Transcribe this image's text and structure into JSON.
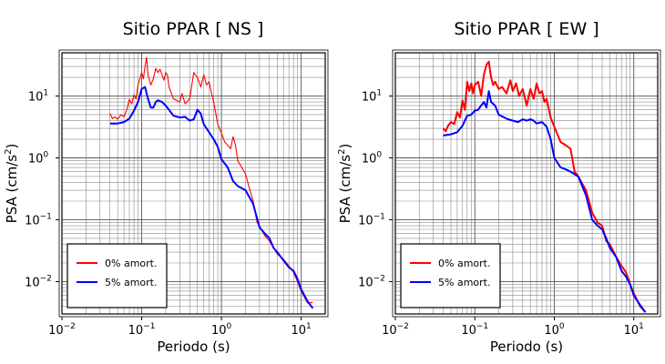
{
  "chart_data": [
    {
      "type": "line",
      "title": "Sitio PPAR [ NS ]",
      "xlabel": "Periodo (s)",
      "ylabel": "PSA (cm/s²)",
      "x_scale": "log",
      "y_scale": "log",
      "xlim": [
        0.01,
        20
      ],
      "ylim": [
        0.003,
        50
      ],
      "grid": true,
      "legend_position": "bottom-left",
      "x_ticks": [
        {
          "value": 0.01,
          "base": "10",
          "exp": "−2"
        },
        {
          "value": 0.1,
          "base": "10",
          "exp": "−1"
        },
        {
          "value": 1,
          "base": "10",
          "exp": "0"
        },
        {
          "value": 10,
          "base": "10",
          "exp": "1"
        }
      ],
      "y_ticks": [
        {
          "value": 0.01,
          "base": "10",
          "exp": "−2"
        },
        {
          "value": 0.1,
          "base": "10",
          "exp": "−1"
        },
        {
          "value": 1,
          "base": "10",
          "exp": "0"
        },
        {
          "value": 10,
          "base": "10",
          "exp": "1"
        }
      ],
      "series": [
        {
          "name": "0% amort.",
          "color": "#ff0000",
          "x": [
            0.04,
            0.043,
            0.046,
            0.05,
            0.055,
            0.06,
            0.065,
            0.07,
            0.075,
            0.08,
            0.085,
            0.09,
            0.1,
            0.105,
            0.11,
            0.115,
            0.12,
            0.13,
            0.14,
            0.15,
            0.16,
            0.17,
            0.19,
            0.2,
            0.21,
            0.22,
            0.25,
            0.3,
            0.32,
            0.35,
            0.4,
            0.45,
            0.5,
            0.55,
            0.6,
            0.65,
            0.7,
            0.75,
            0.8,
            0.9,
            1.0,
            1.1,
            1.2,
            1.3,
            1.4,
            1.5,
            1.6,
            1.8,
            2.0,
            2.2,
            2.5,
            2.8,
            3.0,
            3.5,
            4.0,
            4.5,
            5.0,
            6.0,
            7.0,
            8.0,
            9.0,
            10.0,
            12.0,
            14.0
          ],
          "y": [
            5.2,
            4.3,
            4.6,
            4.2,
            5.0,
            4.6,
            6.0,
            8.8,
            7.5,
            10.5,
            9.0,
            15.0,
            24.0,
            19.0,
            30.0,
            42.0,
            22.0,
            15.0,
            19.0,
            28.0,
            24.0,
            27.0,
            18.0,
            24.0,
            22.0,
            14.0,
            9.0,
            8.0,
            11.0,
            7.5,
            9.0,
            24.0,
            20.0,
            14.0,
            22.0,
            15.0,
            17.0,
            11.0,
            8.0,
            3.5,
            2.5,
            1.8,
            1.6,
            1.4,
            2.2,
            1.6,
            0.9,
            0.7,
            0.55,
            0.35,
            0.2,
            0.09,
            0.08,
            0.055,
            0.045,
            0.035,
            0.028,
            0.023,
            0.018,
            0.014,
            0.01,
            0.007,
            0.0045,
            0.0046
          ]
        },
        {
          "name": "5% amort.",
          "color": "#0000ff",
          "x": [
            0.04,
            0.05,
            0.06,
            0.07,
            0.08,
            0.09,
            0.1,
            0.11,
            0.12,
            0.13,
            0.14,
            0.15,
            0.16,
            0.18,
            0.2,
            0.22,
            0.25,
            0.3,
            0.35,
            0.4,
            0.45,
            0.5,
            0.55,
            0.6,
            0.7,
            0.8,
            0.9,
            1.0,
            1.2,
            1.4,
            1.6,
            2.0,
            2.5,
            3.0,
            3.5,
            4.0,
            4.5,
            5.0,
            6.0,
            7.0,
            8.0,
            9.0,
            10.0,
            12.0,
            14.0
          ],
          "y": [
            3.6,
            3.6,
            3.8,
            4.3,
            5.8,
            8.0,
            13.0,
            14.0,
            9.0,
            6.5,
            6.5,
            8.0,
            8.5,
            8.0,
            7.0,
            6.0,
            4.8,
            4.5,
            4.6,
            4.0,
            4.2,
            6.0,
            5.2,
            3.5,
            2.6,
            2.0,
            1.5,
            0.95,
            0.7,
            0.42,
            0.35,
            0.3,
            0.18,
            0.075,
            0.06,
            0.05,
            0.035,
            0.03,
            0.022,
            0.017,
            0.015,
            0.011,
            0.0075,
            0.0048,
            0.0037
          ]
        }
      ]
    },
    {
      "type": "line",
      "title": "Sitio PPAR [ EW ]",
      "xlabel": "Periodo (s)",
      "ylabel": "PSA (cm/s²)",
      "x_scale": "log",
      "y_scale": "log",
      "xlim": [
        0.01,
        20
      ],
      "ylim": [
        0.003,
        50
      ],
      "grid": true,
      "legend_position": "bottom-left",
      "x_ticks": [
        {
          "value": 0.01,
          "base": "10",
          "exp": "−2"
        },
        {
          "value": 0.1,
          "base": "10",
          "exp": "−1"
        },
        {
          "value": 1,
          "base": "10",
          "exp": "0"
        },
        {
          "value": 10,
          "base": "10",
          "exp": "1"
        }
      ],
      "y_ticks": [
        {
          "value": 0.01,
          "base": "10",
          "exp": "−2"
        },
        {
          "value": 0.1,
          "base": "10",
          "exp": "−1"
        },
        {
          "value": 1,
          "base": "10",
          "exp": "0"
        },
        {
          "value": 10,
          "base": "10",
          "exp": "1"
        }
      ],
      "series": [
        {
          "name": "0% amort.",
          "color": "#ff0000",
          "x": [
            0.04,
            0.043,
            0.046,
            0.05,
            0.055,
            0.06,
            0.065,
            0.07,
            0.075,
            0.08,
            0.085,
            0.09,
            0.095,
            0.1,
            0.11,
            0.12,
            0.13,
            0.14,
            0.15,
            0.16,
            0.17,
            0.18,
            0.2,
            0.22,
            0.25,
            0.28,
            0.3,
            0.33,
            0.36,
            0.4,
            0.45,
            0.5,
            0.55,
            0.6,
            0.65,
            0.7,
            0.75,
            0.8,
            0.9,
            1.0,
            1.2,
            1.4,
            1.6,
            1.8,
            2.0,
            2.5,
            3.0,
            3.5,
            4.0,
            4.5,
            5.0,
            6.0,
            7.0,
            8.0,
            9.0,
            10.0,
            12.0,
            14.0
          ],
          "y": [
            3.0,
            2.7,
            3.3,
            3.8,
            3.5,
            5.5,
            4.5,
            8.5,
            6.0,
            17.0,
            12.0,
            16.0,
            11.0,
            15.0,
            17.0,
            10.0,
            22.0,
            32.0,
            36.0,
            20.0,
            15.0,
            17.0,
            13.0,
            14.0,
            11.0,
            18.0,
            12.0,
            16.0,
            10.0,
            13.0,
            7.0,
            13.0,
            9.0,
            16.0,
            11.0,
            12.0,
            8.0,
            9.0,
            4.5,
            3.2,
            1.8,
            1.6,
            1.4,
            0.6,
            0.5,
            0.3,
            0.13,
            0.09,
            0.08,
            0.045,
            0.04,
            0.025,
            0.018,
            0.014,
            0.009,
            0.0065,
            0.004,
            0.0032
          ]
        },
        {
          "name": "5% amort.",
          "color": "#0000ff",
          "x": [
            0.04,
            0.05,
            0.06,
            0.07,
            0.08,
            0.09,
            0.1,
            0.11,
            0.12,
            0.13,
            0.14,
            0.15,
            0.16,
            0.18,
            0.2,
            0.25,
            0.3,
            0.35,
            0.4,
            0.45,
            0.5,
            0.55,
            0.6,
            0.7,
            0.8,
            0.9,
            1.0,
            1.2,
            1.4,
            1.6,
            2.0,
            2.5,
            3.0,
            3.5,
            4.0,
            4.5,
            5.0,
            6.0,
            7.0,
            8.0,
            9.0,
            10.0,
            12.0,
            14.0
          ],
          "y": [
            2.3,
            2.4,
            2.6,
            3.3,
            4.8,
            5.0,
            5.8,
            6.0,
            7.0,
            8.0,
            6.5,
            12.0,
            8.0,
            7.0,
            5.0,
            4.3,
            4.0,
            3.8,
            4.2,
            4.0,
            4.2,
            4.0,
            3.6,
            3.8,
            3.2,
            2.0,
            1.0,
            0.7,
            0.65,
            0.6,
            0.5,
            0.25,
            0.1,
            0.08,
            0.07,
            0.05,
            0.035,
            0.025,
            0.015,
            0.012,
            0.009,
            0.006,
            0.0042,
            0.0032
          ]
        }
      ]
    }
  ]
}
